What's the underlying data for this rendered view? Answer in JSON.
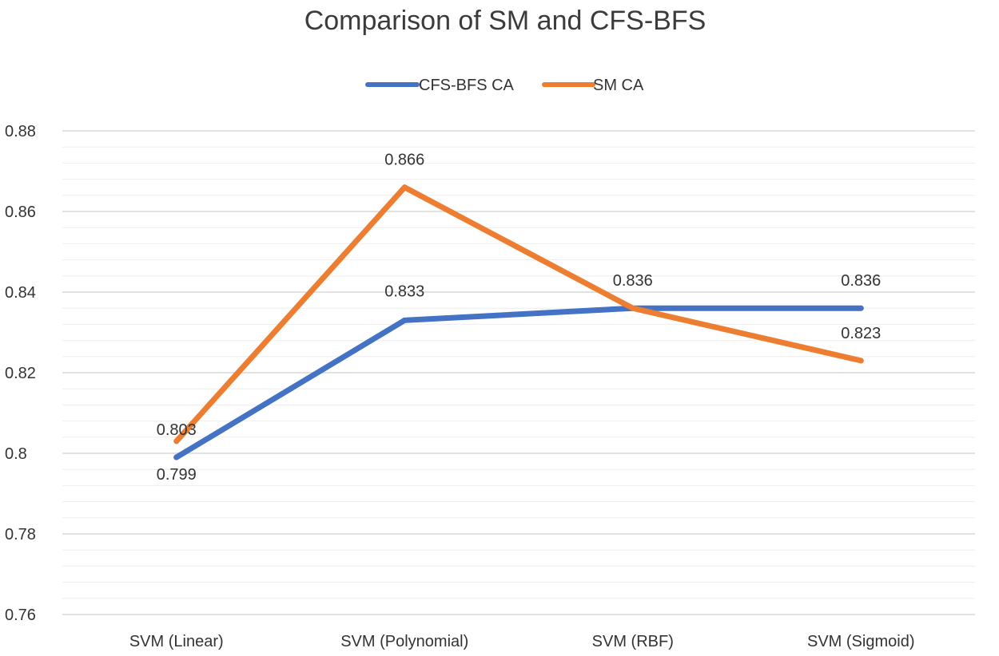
{
  "chart_data": {
    "type": "line",
    "title": "Comparison of SM and CFS-BFS",
    "xlabel": "",
    "ylabel": "",
    "categories": [
      "SVM (Linear)",
      "SVM (Polynomial)",
      "SVM (RBF)",
      "SVM (Sigmoid)"
    ],
    "ylim": [
      0.76,
      0.88
    ],
    "yticks": [
      "0.76",
      "0.78",
      "0.8",
      "0.82",
      "0.84",
      "0.86",
      "0.88"
    ],
    "grid": true,
    "legend_position": "top-center",
    "series": [
      {
        "name": "CFS-BFS CA",
        "color": "#4472c4",
        "values": [
          0.799,
          0.833,
          0.836,
          0.836
        ],
        "labels": [
          "0.799",
          "0.833",
          "0.836",
          "0.836"
        ]
      },
      {
        "name": "SM CA",
        "color": "#ed7d31",
        "values": [
          0.803,
          0.866,
          0.836,
          0.823
        ],
        "labels": [
          "0.803",
          "0.866",
          "",
          "0.823"
        ]
      }
    ]
  }
}
